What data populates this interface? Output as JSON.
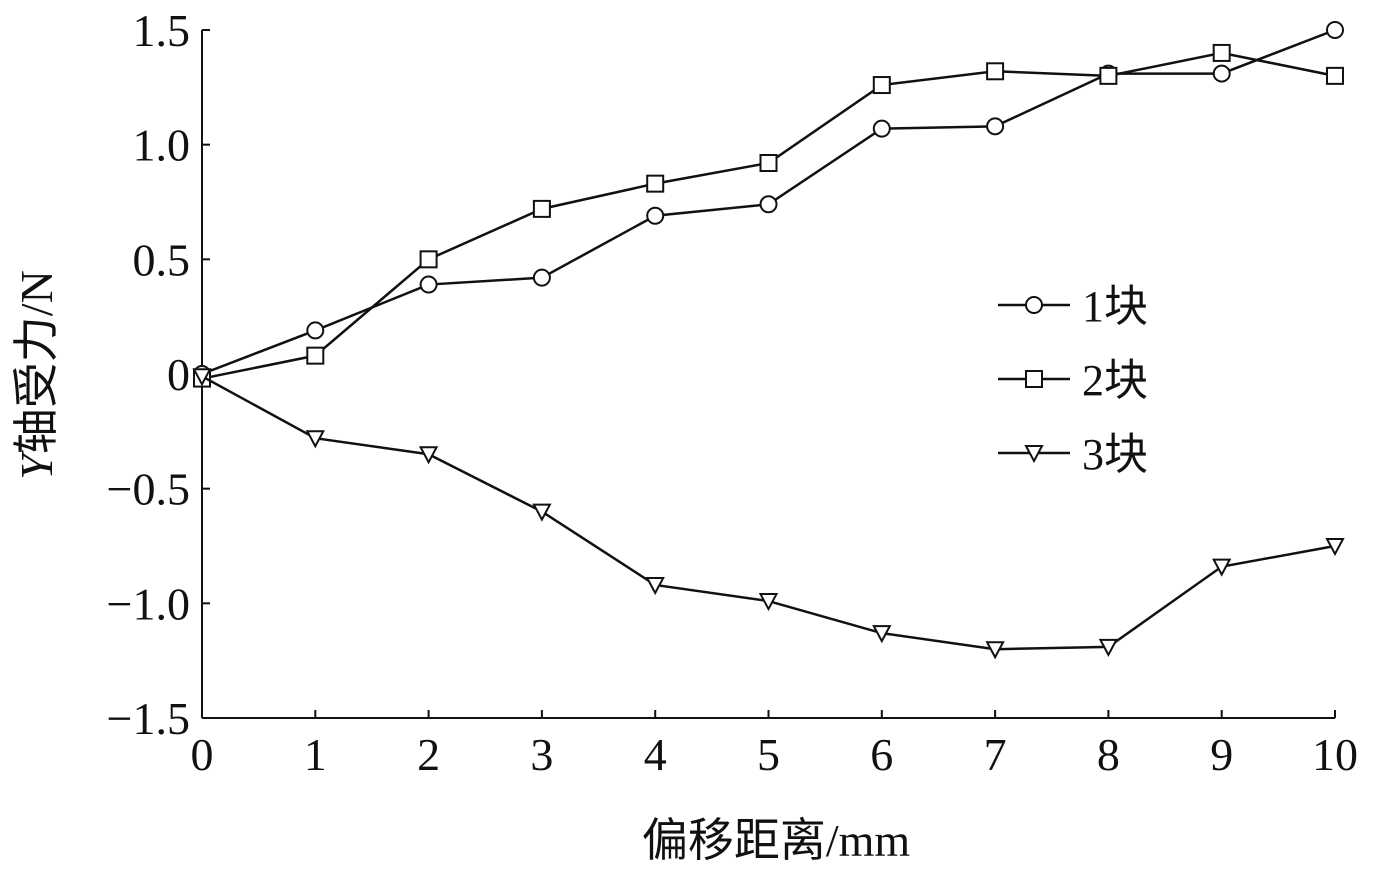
{
  "chart_data": {
    "type": "line",
    "xlabel": "偏移距离/mm",
    "ylabel_italic": "Y",
    "ylabel_rest": "轴受力/N",
    "xlim": [
      0,
      10
    ],
    "ylim": [
      -1.5,
      1.5
    ],
    "x_ticks": [
      0,
      1,
      2,
      3,
      4,
      5,
      6,
      7,
      8,
      9,
      10
    ],
    "x_tick_labels": [
      "0",
      "1",
      "2",
      "3",
      "4",
      "5",
      "6",
      "7",
      "8",
      "9",
      "10"
    ],
    "y_ticks": [
      -1.5,
      -1.0,
      -0.5,
      0,
      0.5,
      1.0,
      1.5
    ],
    "y_tick_labels": [
      "−1.5",
      "−1.0",
      "−0.5",
      "0",
      "0.5",
      "1.0",
      "1.5"
    ],
    "grid": false,
    "legend_position": "right",
    "x": [
      0,
      1,
      2,
      3,
      4,
      5,
      6,
      7,
      8,
      9,
      10
    ],
    "series": [
      {
        "name": "1块",
        "marker": "circle",
        "values": [
          0,
          0.19,
          0.39,
          0.42,
          0.69,
          0.74,
          1.07,
          1.08,
          1.31,
          1.31,
          1.5
        ]
      },
      {
        "name": "2块",
        "marker": "square",
        "values": [
          -0.02,
          0.08,
          0.5,
          0.72,
          0.83,
          0.92,
          1.26,
          1.32,
          1.3,
          1.4,
          1.3
        ]
      },
      {
        "name": "3块",
        "marker": "triangle-down",
        "values": [
          -0.01,
          -0.28,
          -0.35,
          -0.6,
          -0.92,
          -0.99,
          -1.13,
          -1.2,
          -1.19,
          -0.84,
          -0.75
        ]
      }
    ]
  },
  "colors": {
    "line": "#111111",
    "background": "#ffffff"
  }
}
